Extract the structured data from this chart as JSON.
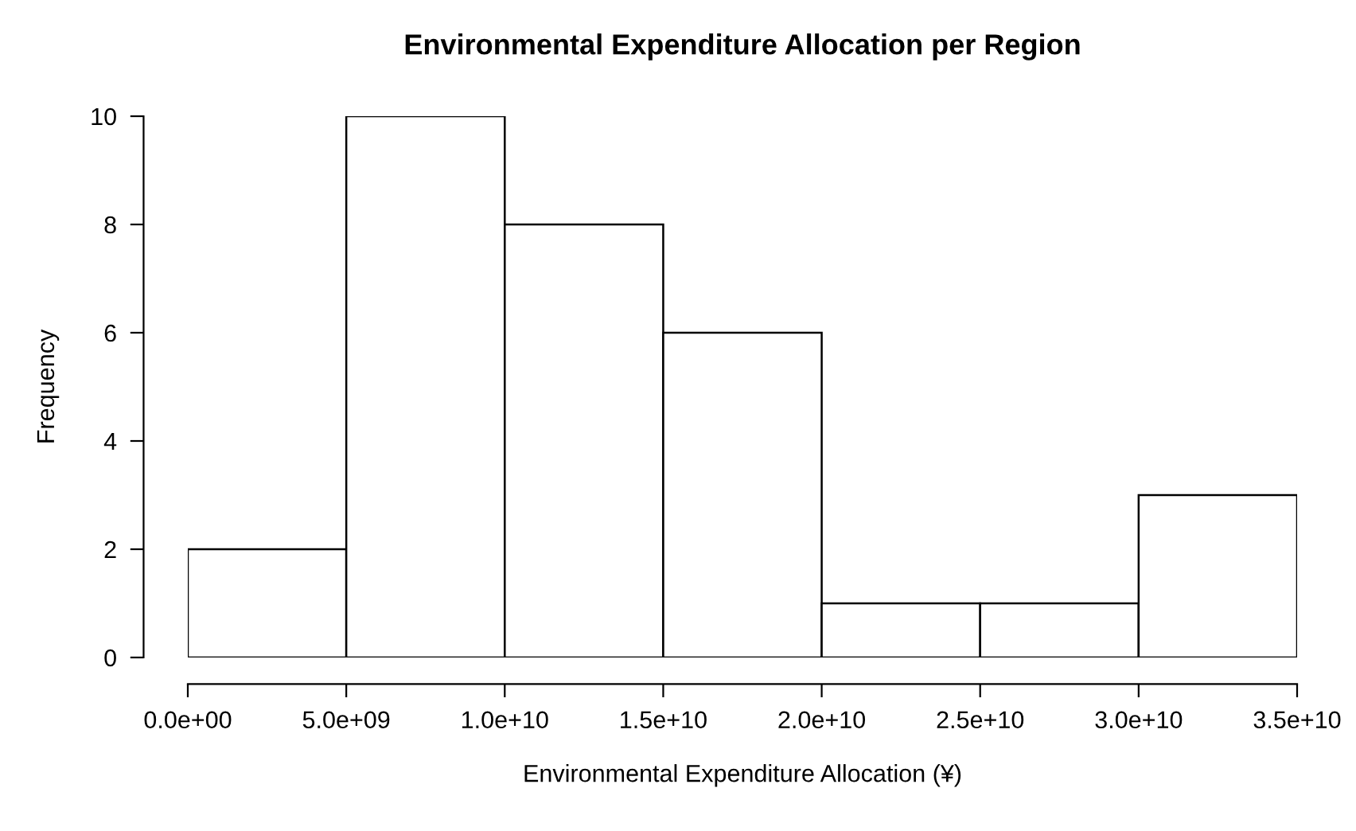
{
  "chart_data": {
    "type": "histogram",
    "title": "Environmental Expenditure Allocation per Region",
    "xlabel": "Environmental Expenditure Allocation (¥)",
    "ylabel": "Frequency",
    "bins": [
      0,
      5000000000,
      10000000000,
      15000000000,
      20000000000,
      25000000000,
      30000000000,
      35000000000
    ],
    "values": [
      2,
      10,
      8,
      6,
      1,
      1,
      3
    ],
    "color": "#ffffff",
    "xlim": [
      0,
      35000000000
    ],
    "xticks": [
      {
        "value": 0,
        "label": "0.0e+00"
      },
      {
        "value": 5000000000,
        "label": "5.0e+09"
      },
      {
        "value": 10000000000,
        "label": "1.0e+10"
      },
      {
        "value": 15000000000,
        "label": "1.5e+10"
      },
      {
        "value": 20000000000,
        "label": "2.0e+10"
      },
      {
        "value": 25000000000,
        "label": "2.5e+10"
      },
      {
        "value": 30000000000,
        "label": "3.0e+10"
      },
      {
        "value": 35000000000,
        "label": "3.5e+10"
      }
    ],
    "ylim": [
      0,
      10
    ],
    "yticks": [
      0,
      2,
      4,
      6,
      8,
      10
    ],
    "grid": false,
    "legend": false
  }
}
